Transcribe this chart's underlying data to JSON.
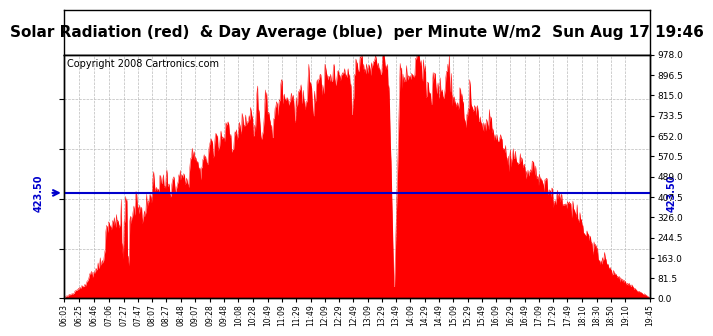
{
  "title": "Solar Radiation (red)  & Day Average (blue)  per Minute W/m2  Sun Aug 17 19:46",
  "copyright": "Copyright 2008 Cartronics.com",
  "y_right_labels": [
    "978.0",
    "896.5",
    "815.0",
    "733.5",
    "652.0",
    "570.5",
    "489.0",
    "407.5",
    "326.0",
    "244.5",
    "163.0",
    "81.5",
    "0.0"
  ],
  "y_right_values": [
    978.0,
    896.5,
    815.0,
    733.5,
    652.0,
    570.5,
    489.0,
    407.5,
    326.0,
    244.5,
    163.0,
    81.5,
    0.0
  ],
  "y_max": 978.0,
  "y_min": 0.0,
  "day_average": 423.5,
  "avg_label": "423.50",
  "bg_color": "#ffffff",
  "plot_bg_color": "#ffffff",
  "bar_color": "#ff0000",
  "avg_line_color": "#0000cc",
  "grid_color": "#bbbbbb",
  "title_fontsize": 11,
  "copyright_fontsize": 7,
  "tick_label_fontsize": 5.5,
  "x_tick_labels": [
    "06:03",
    "06:25",
    "06:46",
    "07:06",
    "07:27",
    "07:47",
    "08:07",
    "08:27",
    "08:48",
    "09:07",
    "09:28",
    "09:48",
    "10:08",
    "10:28",
    "10:49",
    "11:09",
    "11:29",
    "11:49",
    "12:09",
    "12:29",
    "12:49",
    "13:09",
    "13:29",
    "13:49",
    "14:09",
    "14:29",
    "14:49",
    "15:09",
    "15:29",
    "15:49",
    "16:09",
    "16:29",
    "16:49",
    "17:09",
    "17:29",
    "17:49",
    "18:10",
    "18:30",
    "18:50",
    "19:10",
    "19:45"
  ],
  "num_points": 836,
  "start_time": "06:03",
  "end_time": "19:45"
}
